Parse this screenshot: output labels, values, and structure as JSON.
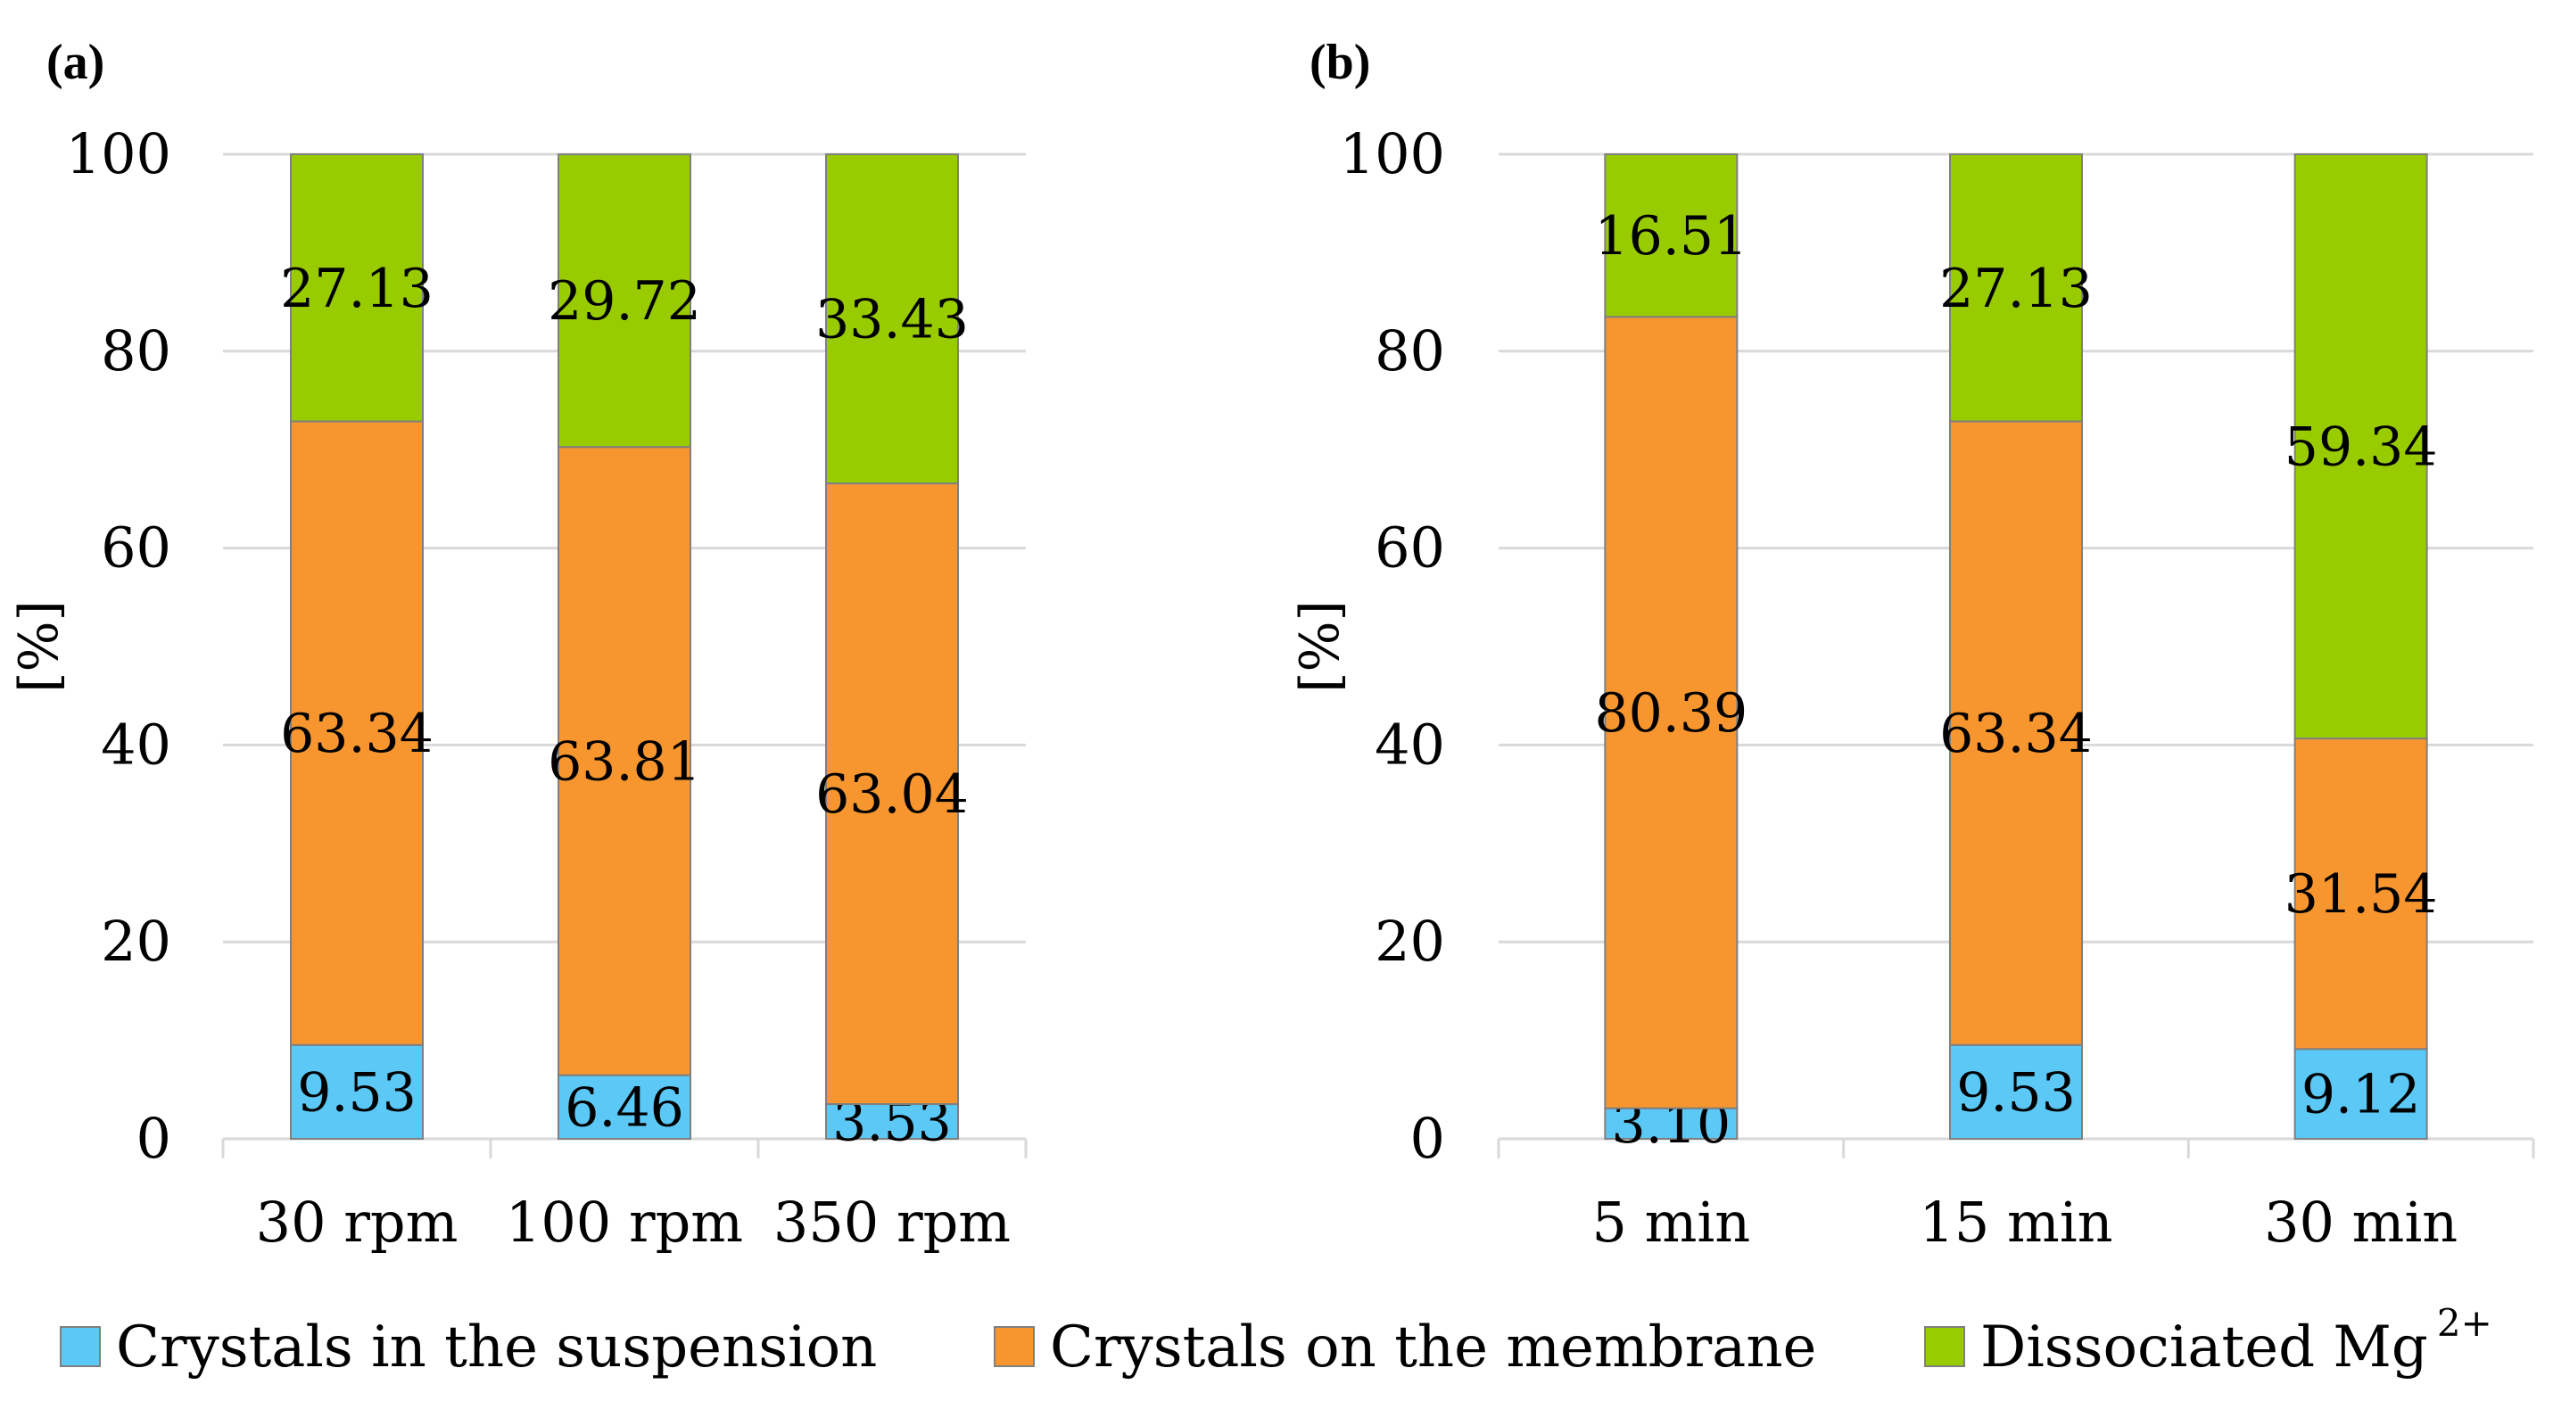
{
  "legend": [
    {
      "label": "Crystals in the suspension",
      "color": "#5bc8f5"
    },
    {
      "label": "Crystals on the membrane",
      "color": "#f7962f"
    },
    {
      "label": "Dissociated Mg",
      "superscript": "2+",
      "color": "#99cc00"
    }
  ],
  "chart_data": [
    {
      "type": "bar",
      "stacked": true,
      "panel": "(a)",
      "ylabel": "[%]",
      "ylim": [
        0,
        100
      ],
      "yticks": [
        "0",
        "20",
        "40",
        "60",
        "80",
        "100"
      ],
      "categories": [
        "30 rpm",
        "100 rpm",
        "350 rpm"
      ],
      "series": [
        {
          "name": "Crystals in the suspension",
          "values": [
            9.53,
            6.46,
            3.53
          ],
          "labels": [
            "9.53",
            "6.46",
            "3.53"
          ]
        },
        {
          "name": "Crystals on the membrane",
          "values": [
            63.34,
            63.81,
            63.04
          ],
          "labels": [
            "63.34",
            "63.81",
            "63.04"
          ]
        },
        {
          "name": "Dissociated Mg2+",
          "values": [
            27.13,
            29.72,
            33.43
          ],
          "labels": [
            "27.13",
            "29.72",
            "33.43"
          ]
        }
      ]
    },
    {
      "type": "bar",
      "stacked": true,
      "panel": "(b)",
      "ylabel": "[%]",
      "ylim": [
        0,
        100
      ],
      "yticks": [
        "0",
        "20",
        "40",
        "60",
        "80",
        "100"
      ],
      "categories": [
        "5 min",
        "15 min",
        "30 min"
      ],
      "series": [
        {
          "name": "Crystals in the suspension",
          "values": [
            3.1,
            9.53,
            9.12
          ],
          "labels": [
            "3.10",
            "9.53",
            "9.12"
          ]
        },
        {
          "name": "Crystals on the membrane",
          "values": [
            80.39,
            63.34,
            31.54
          ],
          "labels": [
            "80.39",
            "63.34",
            "31.54"
          ]
        },
        {
          "name": "Dissociated Mg2+",
          "values": [
            16.51,
            27.13,
            59.34
          ],
          "labels": [
            "16.51",
            "27.13",
            "59.34"
          ]
        }
      ]
    }
  ]
}
